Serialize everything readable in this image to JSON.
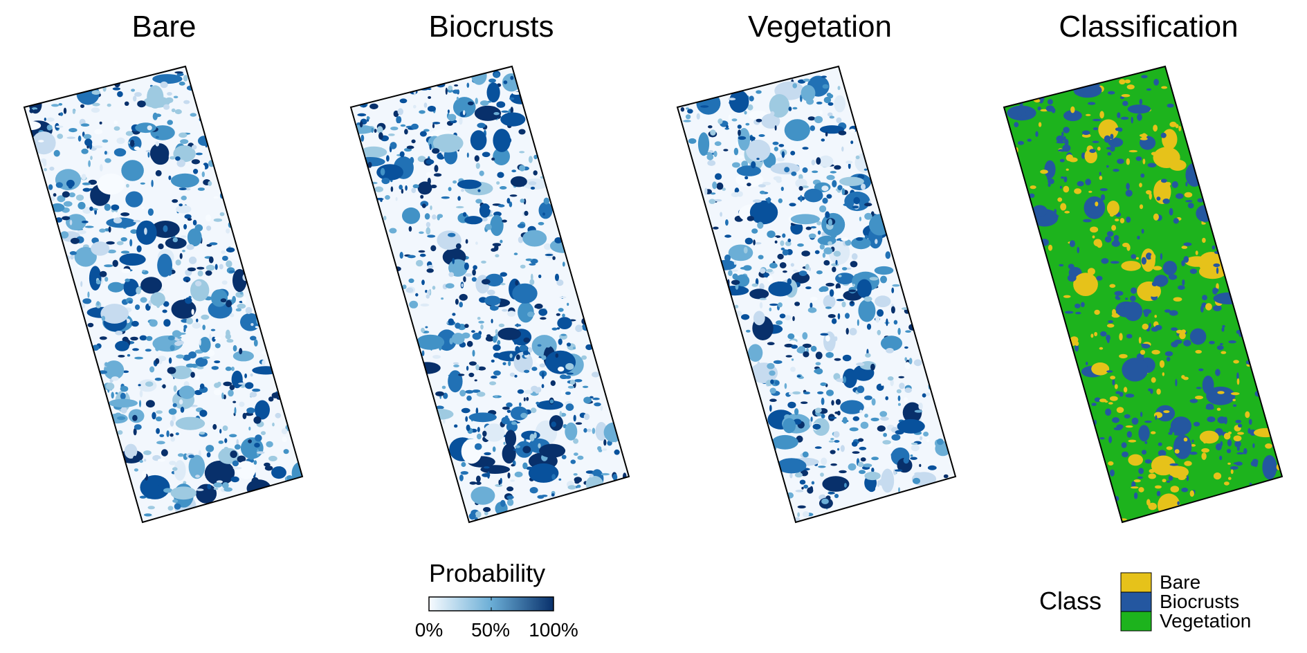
{
  "panels": [
    {
      "title": "Bare",
      "mode": "prob",
      "density": 0.22,
      "seed": 11
    },
    {
      "title": "Biocrusts",
      "mode": "prob",
      "density": 0.5,
      "seed": 23
    },
    {
      "title": "Vegetation",
      "mode": "prob",
      "density": 0.38,
      "seed": 37
    },
    {
      "title": "Classification",
      "mode": "class",
      "seed": 51
    }
  ],
  "probability_legend": {
    "title": "Probability",
    "ticks": [
      "0%",
      "50%",
      "100%"
    ],
    "colors": [
      "#f7fbff",
      "#6baed6",
      "#08306b"
    ]
  },
  "class_legend": {
    "title": "Class",
    "items": [
      {
        "label": "Bare",
        "color": "#e6c21a"
      },
      {
        "label": "Biocrusts",
        "color": "#2457a0"
      },
      {
        "label": "Vegetation",
        "color": "#1db31d"
      }
    ]
  }
}
